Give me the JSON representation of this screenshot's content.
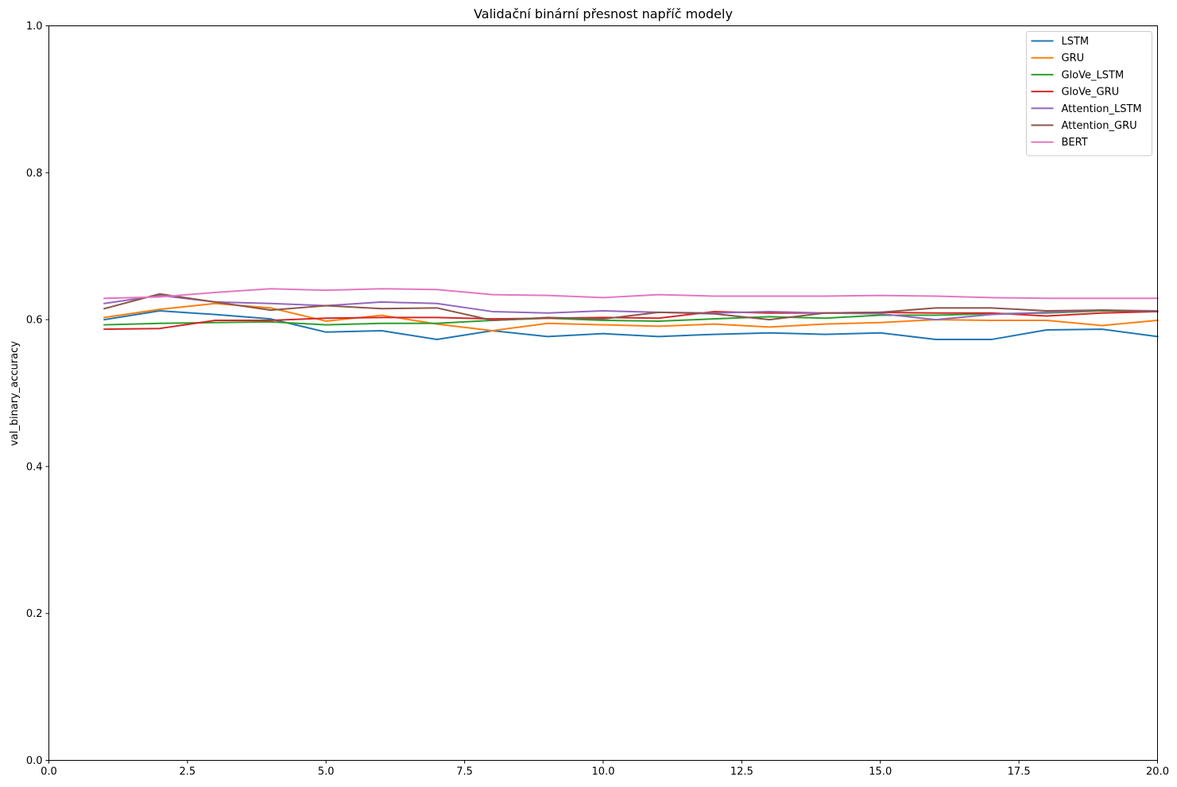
{
  "chart_data": {
    "type": "line",
    "title": "Validační binární přesnost napříč modely",
    "xlabel": "",
    "ylabel": "val_binary_accuracy",
    "xlim": [
      0,
      20
    ],
    "ylim": [
      0,
      1
    ],
    "x_ticks": [
      "0.0",
      "2.5",
      "5.0",
      "7.5",
      "10.0",
      "12.5",
      "15.0",
      "17.5",
      "20.0"
    ],
    "y_ticks": [
      "0.0",
      "0.2",
      "0.4",
      "0.6",
      "0.8",
      "1.0"
    ],
    "grid": false,
    "legend_position": "top-right",
    "x": [
      1,
      2,
      3,
      4,
      5,
      6,
      7,
      8,
      9,
      10,
      11,
      12,
      13,
      14,
      15,
      16,
      17,
      18,
      19,
      20
    ],
    "series": [
      {
        "name": "LSTM",
        "color": "#1f77b4",
        "values": [
          0.6,
          0.612,
          0.607,
          0.601,
          0.583,
          0.585,
          0.573,
          0.585,
          0.577,
          0.581,
          0.577,
          0.58,
          0.582,
          0.58,
          0.582,
          0.573,
          0.573,
          0.586,
          0.587,
          0.577
        ]
      },
      {
        "name": "GRU",
        "color": "#ff7f0e",
        "values": [
          0.603,
          0.614,
          0.622,
          0.616,
          0.598,
          0.606,
          0.594,
          0.585,
          0.595,
          0.593,
          0.591,
          0.594,
          0.59,
          0.594,
          0.596,
          0.6,
          0.599,
          0.599,
          0.592,
          0.599
        ]
      },
      {
        "name": "GloVe_LSTM",
        "color": "#2ca02c",
        "values": [
          0.593,
          0.595,
          0.596,
          0.597,
          0.593,
          0.595,
          0.595,
          0.599,
          0.602,
          0.599,
          0.598,
          0.601,
          0.604,
          0.602,
          0.606,
          0.606,
          0.608,
          0.609,
          0.612,
          0.611
        ]
      },
      {
        "name": "GloVe_GRU",
        "color": "#d62728",
        "values": [
          0.587,
          0.588,
          0.599,
          0.599,
          0.602,
          0.603,
          0.603,
          0.601,
          0.602,
          0.603,
          0.602,
          0.611,
          0.609,
          0.609,
          0.61,
          0.609,
          0.609,
          0.605,
          0.609,
          0.611
        ]
      },
      {
        "name": "Attention_LSTM",
        "color": "#9467bd",
        "values": [
          0.622,
          0.633,
          0.624,
          0.622,
          0.619,
          0.624,
          0.622,
          0.611,
          0.609,
          0.612,
          0.61,
          0.609,
          0.611,
          0.609,
          0.608,
          0.6,
          0.607,
          0.61,
          0.613,
          0.612
        ]
      },
      {
        "name": "Attention_GRU",
        "color": "#8c564b",
        "values": [
          0.615,
          0.635,
          0.624,
          0.613,
          0.619,
          0.615,
          0.616,
          0.599,
          0.603,
          0.601,
          0.61,
          0.608,
          0.6,
          0.609,
          0.61,
          0.616,
          0.616,
          0.612,
          0.613,
          0.611
        ]
      },
      {
        "name": "BERT",
        "color": "#e377c2",
        "values": [
          0.629,
          0.631,
          0.637,
          0.642,
          0.64,
          0.642,
          0.641,
          0.634,
          0.633,
          0.63,
          0.634,
          0.632,
          0.632,
          0.632,
          0.633,
          0.632,
          0.63,
          0.629,
          0.629,
          0.629
        ]
      }
    ]
  }
}
